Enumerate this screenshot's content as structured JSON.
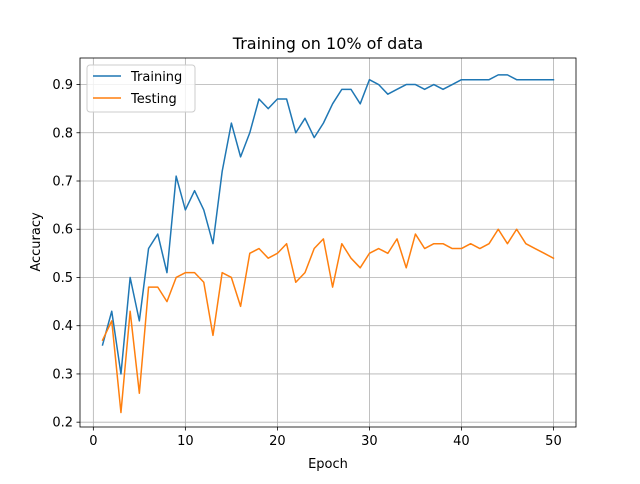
{
  "chart_data": {
    "type": "line",
    "title": "Training on 10% of data",
    "xlabel": "Epoch",
    "ylabel": "Accuracy",
    "xlim": [
      -1.45,
      52.45
    ],
    "ylim": [
      0.19,
      0.955
    ],
    "xticks": [
      0,
      10,
      20,
      30,
      40,
      50
    ],
    "yticks": [
      0.2,
      0.3,
      0.4,
      0.5,
      0.6,
      0.7,
      0.8,
      0.9
    ],
    "xtick_labels": [
      "0",
      "10",
      "20",
      "30",
      "40",
      "50"
    ],
    "ytick_labels": [
      "0.2",
      "0.3",
      "0.4",
      "0.5",
      "0.6",
      "0.7",
      "0.8",
      "0.9"
    ],
    "grid": true,
    "legend_position": "upper-left",
    "x": [
      1,
      2,
      3,
      4,
      5,
      6,
      7,
      8,
      9,
      10,
      11,
      12,
      13,
      14,
      15,
      16,
      17,
      18,
      19,
      20,
      21,
      22,
      23,
      24,
      25,
      26,
      27,
      28,
      29,
      30,
      31,
      32,
      33,
      34,
      35,
      36,
      37,
      38,
      39,
      40,
      41,
      42,
      43,
      44,
      45,
      46,
      47,
      48,
      49,
      50
    ],
    "series": [
      {
        "name": "Training",
        "color": "#1f77b4",
        "values": [
          0.36,
          0.43,
          0.3,
          0.5,
          0.41,
          0.56,
          0.59,
          0.51,
          0.71,
          0.64,
          0.68,
          0.64,
          0.57,
          0.72,
          0.82,
          0.75,
          0.8,
          0.87,
          0.85,
          0.87,
          0.87,
          0.8,
          0.83,
          0.79,
          0.82,
          0.86,
          0.89,
          0.89,
          0.86,
          0.91,
          0.9,
          0.88,
          0.89,
          0.9,
          0.9,
          0.89,
          0.9,
          0.89,
          0.9,
          0.91,
          0.91,
          0.91,
          0.91,
          0.92,
          0.92,
          0.91,
          0.91,
          0.91,
          0.91,
          0.91
        ]
      },
      {
        "name": "Testing",
        "color": "#ff7f0e",
        "values": [
          0.37,
          0.41,
          0.22,
          0.43,
          0.26,
          0.48,
          0.48,
          0.45,
          0.5,
          0.51,
          0.51,
          0.49,
          0.38,
          0.51,
          0.5,
          0.44,
          0.55,
          0.56,
          0.54,
          0.55,
          0.57,
          0.49,
          0.51,
          0.56,
          0.58,
          0.48,
          0.57,
          0.54,
          0.52,
          0.55,
          0.56,
          0.55,
          0.58,
          0.52,
          0.59,
          0.56,
          0.57,
          0.57,
          0.56,
          0.56,
          0.57,
          0.56,
          0.57,
          0.6,
          0.57,
          0.6,
          0.57,
          0.56,
          0.55,
          0.54
        ]
      }
    ]
  }
}
